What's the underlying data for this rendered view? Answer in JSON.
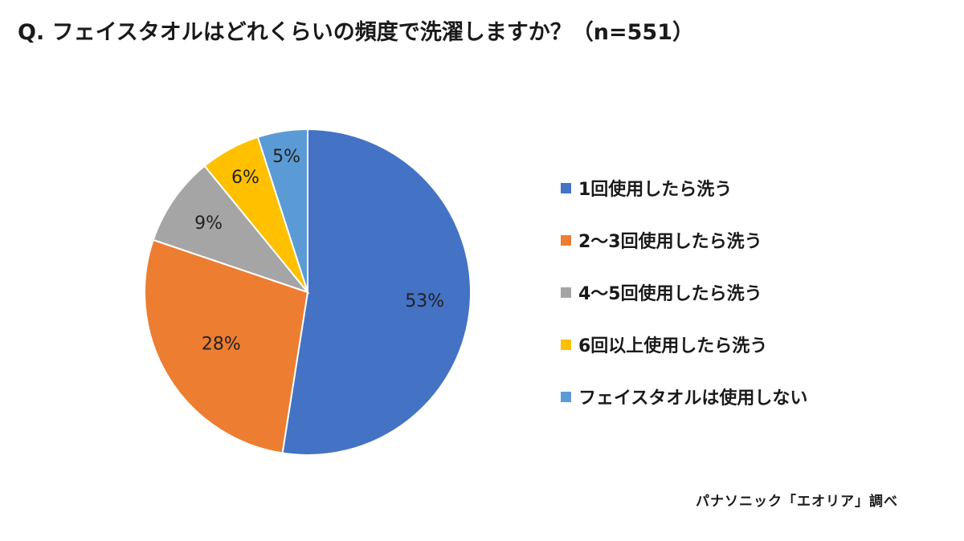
{
  "title": "Q. フェイスタオルはどれくらいの頻度で洗濯しますか？（n=551）",
  "source": "パナソニック「エオリア」調べ",
  "chart_data": {
    "type": "pie",
    "title": "Q. フェイスタオルはどれくらいの頻度で洗濯しますか？（n=551）",
    "sample_size": 551,
    "start_angle": "12 o'clock",
    "direction": "clockwise",
    "legend_placement": "right",
    "categories": [
      "1回使用したら洗う",
      "2～3回使用したら洗う",
      "4～5回使用したら洗う",
      "6回以上使用したら洗う",
      "フェイスタオルは使用しない"
    ],
    "values": [
      53,
      28,
      9,
      6,
      5
    ],
    "labels": [
      "53%",
      "28%",
      "9%",
      "6%",
      "5%"
    ],
    "colors": [
      "#4472C4",
      "#ED7D31",
      "#A5A5A5",
      "#FFC000",
      "#5B9BD5"
    ]
  }
}
